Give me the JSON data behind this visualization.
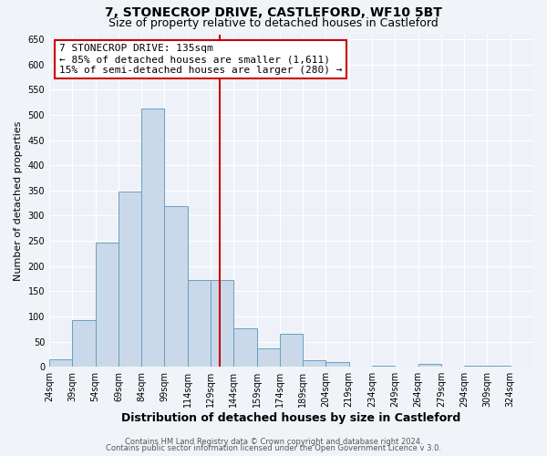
{
  "title": "7, STONECROP DRIVE, CASTLEFORD, WF10 5BT",
  "subtitle": "Size of property relative to detached houses in Castleford",
  "xlabel": "Distribution of detached houses by size in Castleford",
  "ylabel": "Number of detached properties",
  "bin_left_edges": [
    24,
    39,
    54,
    69,
    84,
    99,
    114,
    129,
    144,
    159,
    174,
    189,
    204,
    219,
    234,
    249,
    264,
    279,
    294,
    309
  ],
  "bin_width": 15,
  "bar_heights": [
    15,
    93,
    246,
    348,
    513,
    319,
    172,
    172,
    77,
    37,
    65,
    13,
    10,
    0,
    3,
    0,
    5,
    0,
    3,
    3
  ],
  "bar_color": "#c9d9ea",
  "bar_edge_color": "#6a9ec0",
  "vline_x": 135,
  "vline_color": "#cc0000",
  "annotation_title": "7 STONECROP DRIVE: 135sqm",
  "annotation_line1": "← 85% of detached houses are smaller (1,611)",
  "annotation_line2": "15% of semi-detached houses are larger (280) →",
  "annotation_box_edgecolor": "#cc0000",
  "annotation_bg": "#ffffff",
  "ylim": [
    0,
    660
  ],
  "xlim": [
    24,
    339
  ],
  "yticks": [
    0,
    50,
    100,
    150,
    200,
    250,
    300,
    350,
    400,
    450,
    500,
    550,
    600,
    650
  ],
  "xtick_labels": [
    "24sqm",
    "39sqm",
    "54sqm",
    "69sqm",
    "84sqm",
    "99sqm",
    "114sqm",
    "129sqm",
    "144sqm",
    "159sqm",
    "174sqm",
    "189sqm",
    "204sqm",
    "219sqm",
    "234sqm",
    "249sqm",
    "264sqm",
    "279sqm",
    "294sqm",
    "309sqm",
    "324sqm"
  ],
  "xtick_positions": [
    24,
    39,
    54,
    69,
    84,
    99,
    114,
    129,
    144,
    159,
    174,
    189,
    204,
    219,
    234,
    249,
    264,
    279,
    294,
    309,
    324
  ],
  "footer1": "Contains HM Land Registry data © Crown copyright and database right 2024.",
  "footer2": "Contains public sector information licensed under the Open Government Licence v 3.0.",
  "background_color": "#f0f4f8",
  "plot_bg": "#eef2f8",
  "grid_color": "#ffffff",
  "title_fontsize": 10,
  "subtitle_fontsize": 9,
  "ylabel_fontsize": 8,
  "xlabel_fontsize": 9,
  "tick_fontsize": 7,
  "annotation_fontsize": 8,
  "footer_fontsize": 6
}
